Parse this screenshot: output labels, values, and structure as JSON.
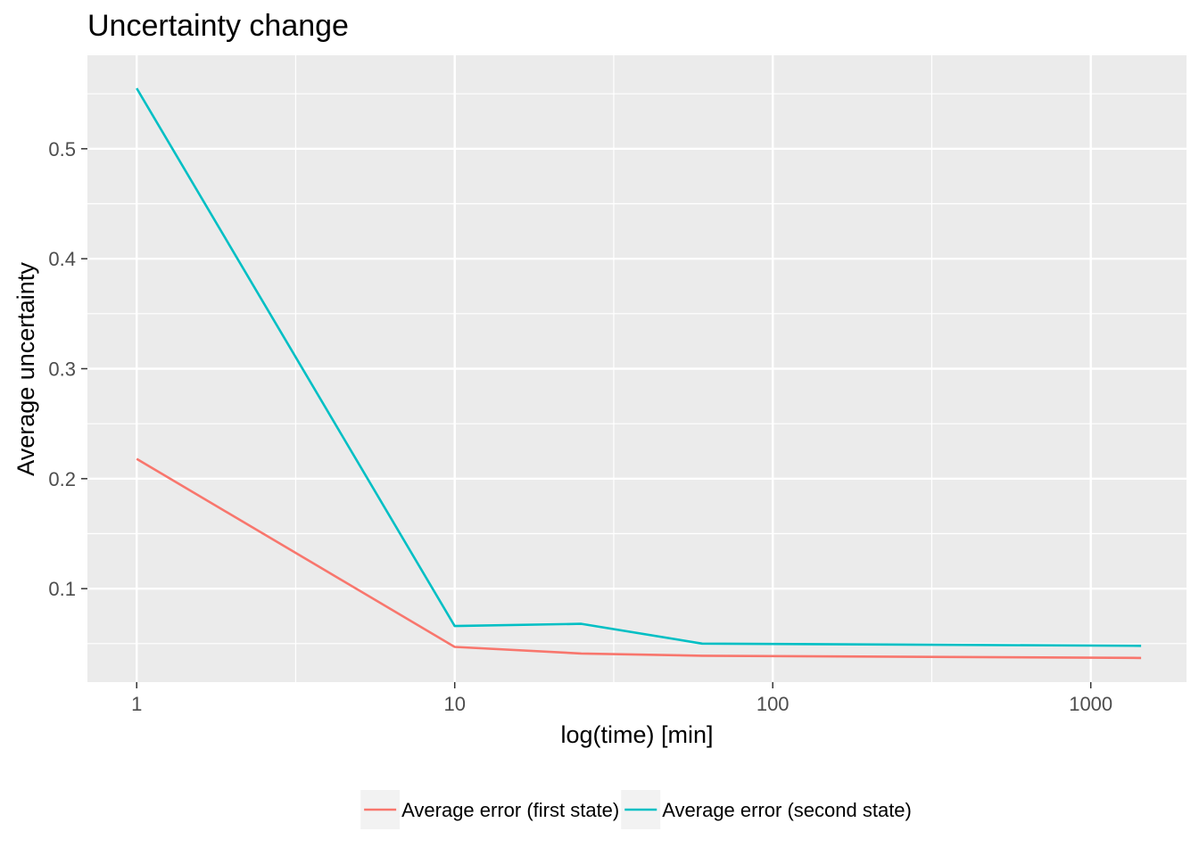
{
  "chart_data": {
    "type": "line",
    "title": "Uncertainty change",
    "xlabel": "log(time) [min]",
    "ylabel": "Average uncertainty",
    "x_scale": "log10",
    "xlim": [
      0.7,
      2000
    ],
    "ylim": [
      0.015,
      0.585
    ],
    "x_ticks": [
      1,
      10,
      100,
      1000
    ],
    "x_tick_labels": [
      "1",
      "10",
      "100",
      "1000"
    ],
    "y_ticks": [
      0.1,
      0.2,
      0.3,
      0.4,
      0.5
    ],
    "y_tick_labels": [
      "0.1",
      "0.2",
      "0.3",
      "0.4",
      "0.5"
    ],
    "grid": true,
    "legend_position": "bottom",
    "series": [
      {
        "name": "Average error (first state)",
        "color": "#F8766D",
        "x": [
          1,
          10,
          25,
          60,
          1440
        ],
        "y": [
          0.218,
          0.047,
          0.041,
          0.039,
          0.037
        ]
      },
      {
        "name": "Average error (second state)",
        "color": "#00BFC4",
        "x": [
          1,
          10,
          25,
          60,
          1440
        ],
        "y": [
          0.555,
          0.066,
          0.068,
          0.05,
          0.048
        ]
      }
    ]
  }
}
